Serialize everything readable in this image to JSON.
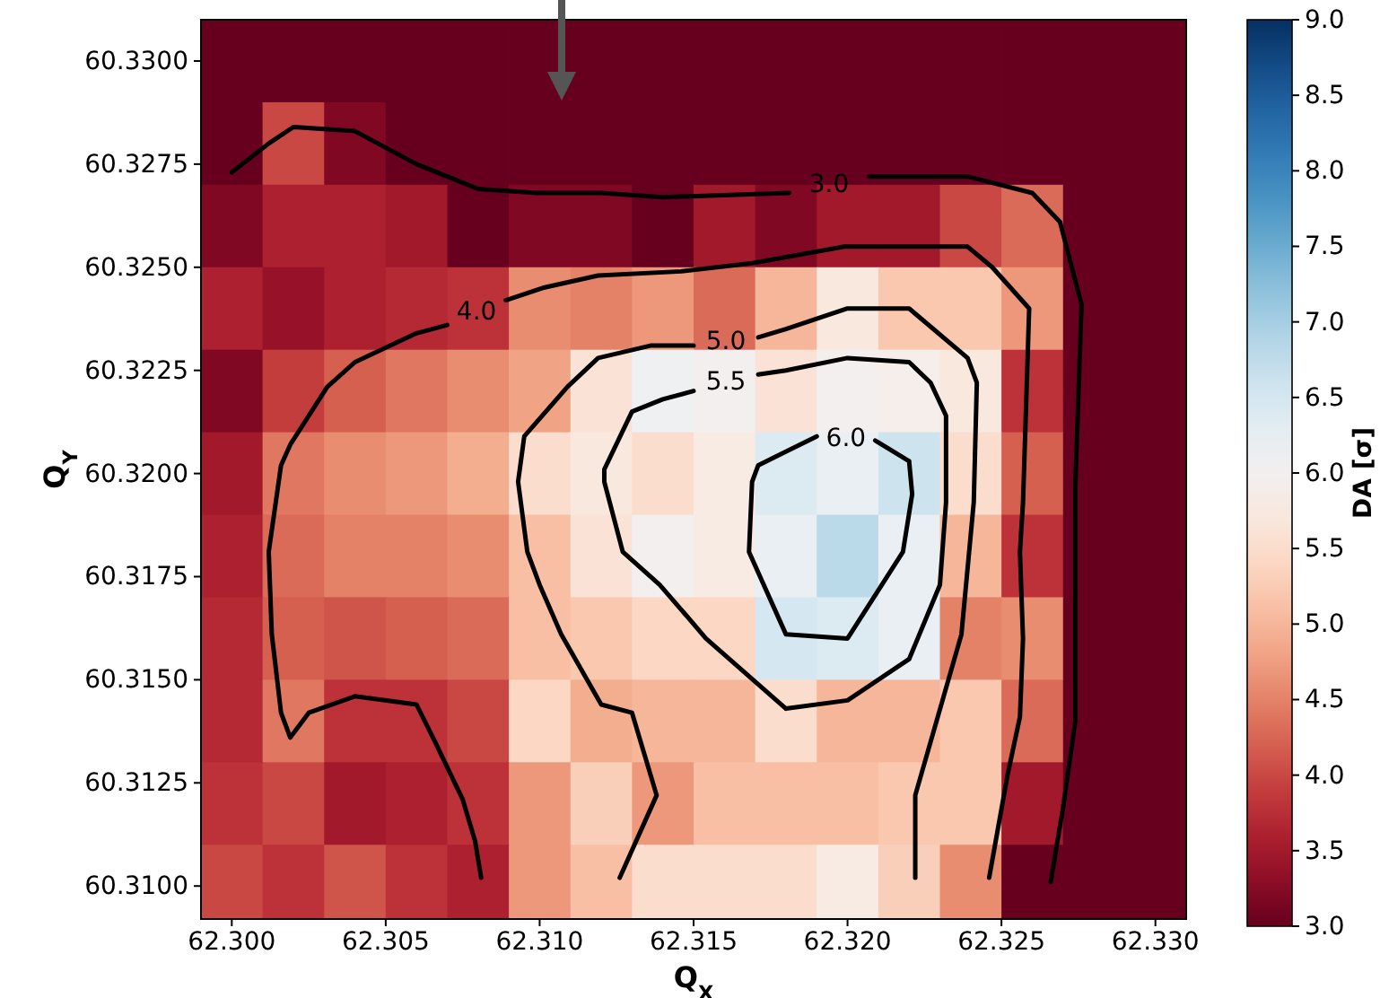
{
  "chart_data": {
    "type": "heatmap",
    "xlabel": "Q$_{X}$",
    "ylabel": "Q$_{Y}$",
    "clabel": "DA [σ]",
    "x": [
      62.3,
      62.302,
      62.304,
      62.306,
      62.308,
      62.31,
      62.312,
      62.314,
      62.316,
      62.318,
      62.32,
      62.322,
      62.324,
      62.326,
      62.328,
      62.33
    ],
    "y": [
      60.33,
      60.328,
      60.326,
      60.324,
      60.322,
      60.32,
      60.318,
      60.316,
      60.314,
      60.312,
      60.31
    ],
    "xlim": [
      62.299,
      62.331
    ],
    "xticks": [
      {
        "value": 62.3,
        "label": "62.300"
      },
      {
        "value": 62.305,
        "label": "62.305"
      },
      {
        "value": 62.31,
        "label": "62.310"
      },
      {
        "value": 62.315,
        "label": "62.315"
      },
      {
        "value": 62.32,
        "label": "62.320"
      },
      {
        "value": 62.325,
        "label": "62.325"
      },
      {
        "value": 62.33,
        "label": "62.330"
      }
    ],
    "ylim": [
      60.3092,
      60.331
    ],
    "yticks": [
      {
        "value": 60.31,
        "label": "60.3100"
      },
      {
        "value": 60.3125,
        "label": "60.3125"
      },
      {
        "value": 60.315,
        "label": "60.3150"
      },
      {
        "value": 60.3175,
        "label": "60.3175"
      },
      {
        "value": 60.32,
        "label": "60.3200"
      },
      {
        "value": 60.3225,
        "label": "60.3225"
      },
      {
        "value": 60.325,
        "label": "60.3250"
      },
      {
        "value": 60.3275,
        "label": "60.3275"
      },
      {
        "value": 60.33,
        "label": "60.3300"
      }
    ],
    "clim": [
      3.0,
      9.0
    ],
    "cticks": [
      {
        "value": 3.0,
        "label": "3.0"
      },
      {
        "value": 3.5,
        "label": "3.5"
      },
      {
        "value": 4.0,
        "label": "4.0"
      },
      {
        "value": 4.5,
        "label": "4.5"
      },
      {
        "value": 5.0,
        "label": "5.0"
      },
      {
        "value": 5.5,
        "label": "5.5"
      },
      {
        "value": 6.0,
        "label": "6.0"
      },
      {
        "value": 6.5,
        "label": "6.5"
      },
      {
        "value": 7.0,
        "label": "7.0"
      },
      {
        "value": 7.5,
        "label": "7.5"
      },
      {
        "value": 8.0,
        "label": "8.0"
      },
      {
        "value": 8.5,
        "label": "8.5"
      },
      {
        "value": 9.0,
        "label": "9.0"
      }
    ],
    "cells": [
      [
        3.0,
        3.0,
        3.0,
        3.0,
        3.0,
        3.0,
        3.0,
        3.0,
        3.0,
        3.0,
        3.0,
        3.0,
        3.0,
        3.0,
        3.0,
        3.0
      ],
      [
        3.0,
        4.0,
        3.2,
        3.0,
        3.0,
        3.0,
        3.0,
        3.0,
        3.0,
        3.0,
        3.0,
        3.0,
        3.0,
        3.0,
        3.0,
        3.0
      ],
      [
        3.2,
        3.6,
        3.6,
        3.5,
        3.0,
        3.2,
        3.2,
        3.0,
        3.5,
        3.2,
        3.5,
        3.5,
        4.0,
        4.3,
        3.0,
        3.0
      ],
      [
        3.6,
        3.4,
        3.6,
        3.7,
        3.8,
        4.6,
        4.5,
        4.7,
        4.3,
        5.0,
        5.7,
        5.2,
        5.2,
        4.7,
        3.0,
        3.0
      ],
      [
        3.2,
        3.9,
        4.2,
        4.4,
        4.6,
        4.8,
        5.6,
        6.1,
        6.0,
        5.6,
        6.0,
        5.9,
        5.7,
        3.8,
        3.0,
        3.0
      ],
      [
        3.5,
        4.4,
        4.6,
        4.7,
        4.9,
        5.5,
        5.7,
        5.5,
        5.8,
        6.4,
        6.2,
        6.6,
        5.5,
        4.2,
        3.0,
        3.0
      ],
      [
        3.6,
        4.3,
        4.5,
        4.5,
        4.6,
        5.1,
        5.6,
        6.0,
        5.8,
        6.2,
        6.8,
        6.2,
        5.0,
        3.8,
        3.0,
        3.0
      ],
      [
        3.7,
        4.2,
        4.1,
        4.2,
        4.3,
        5.1,
        5.2,
        5.4,
        5.4,
        6.5,
        6.4,
        6.2,
        4.5,
        4.6,
        3.0,
        3.0
      ],
      [
        3.7,
        4.4,
        3.8,
        3.8,
        4.0,
        5.4,
        4.9,
        5.0,
        5.0,
        5.5,
        5.0,
        5.0,
        5.2,
        4.3,
        3.0,
        3.0
      ],
      [
        3.8,
        4.0,
        3.5,
        3.6,
        3.8,
        4.7,
        5.3,
        4.7,
        5.1,
        5.1,
        5.1,
        5.2,
        5.2,
        3.5,
        3.0,
        3.0
      ],
      [
        4.0,
        3.8,
        4.1,
        3.8,
        3.6,
        4.7,
        5.1,
        5.5,
        5.5,
        5.5,
        5.8,
        5.3,
        4.6,
        3.0,
        3.0,
        3.0
      ]
    ],
    "series": [
      {
        "type": "line",
        "name": "3.0",
        "color": "#000000",
        "x": [
          62.3,
          62.3012,
          62.302,
          62.304,
          62.306,
          62.308,
          62.3099,
          62.312,
          62.314,
          62.3181,
          62.3194,
          62.3207,
          62.3239,
          62.326,
          62.3269,
          62.3276,
          62.3274,
          62.3274,
          62.327,
          62.3266
        ],
        "values": [
          60.3273,
          60.328,
          60.3284,
          60.3283,
          60.3275,
          60.3269,
          60.3268,
          60.3268,
          60.3267,
          60.3268,
          null,
          60.3272,
          60.3272,
          60.3268,
          60.3261,
          60.3241,
          60.3197,
          60.314,
          60.3119,
          60.3101
        ]
      },
      {
        "type": "line",
        "name": "4.0",
        "color": "#000000",
        "x": [
          62.3081,
          62.3079,
          62.3075,
          62.3066,
          62.306,
          62.304,
          62.3025,
          62.3019,
          62.3016,
          62.3013,
          62.3012,
          62.3016,
          62.3019,
          62.3031,
          62.304,
          62.306,
          62.307,
          62.308,
          62.3089,
          62.3101,
          62.3119,
          62.3146,
          62.3169,
          62.3199,
          62.322,
          62.3239,
          62.3247,
          62.3259,
          62.3257,
          62.3256,
          62.3257,
          62.3256,
          62.3252,
          62.3246
        ],
        "values": [
          60.3102,
          60.3111,
          60.3121,
          60.3135,
          60.3144,
          60.3146,
          60.3142,
          60.3136,
          60.3142,
          60.3161,
          60.3181,
          60.3202,
          60.3207,
          60.3221,
          60.3227,
          60.3234,
          60.3236,
          null,
          60.3242,
          60.3245,
          60.3248,
          60.3249,
          60.3251,
          60.3255,
          60.3255,
          60.3255,
          60.325,
          60.324,
          60.3193,
          60.3181,
          60.316,
          60.3141,
          60.3127,
          60.3102
        ]
      },
      {
        "type": "line",
        "name": "5.0",
        "color": "#000000",
        "x": [
          62.3126,
          62.3138,
          62.313,
          62.312,
          62.3107,
          62.31,
          62.3096,
          62.3093,
          62.3095,
          62.3109,
          62.3119,
          62.3136,
          62.315,
          62.3159,
          62.3171,
          62.318,
          62.32,
          62.322,
          62.3239,
          62.3242,
          62.3241,
          62.3237,
          62.3222,
          62.3222
        ],
        "values": [
          60.3102,
          60.3122,
          60.3142,
          60.3144,
          60.3161,
          60.3173,
          60.3181,
          60.3198,
          60.3209,
          60.3221,
          60.3228,
          60.3231,
          60.3231,
          null,
          60.3233,
          60.3235,
          60.324,
          60.324,
          60.3228,
          60.3222,
          60.3193,
          60.3161,
          60.3122,
          60.3102
        ]
      },
      {
        "type": "line",
        "name": "5.5",
        "color": "#000000",
        "x": [
          62.318,
          62.3154,
          62.3146,
          62.3139,
          62.3127,
          62.3121,
          62.3121,
          62.313,
          62.314,
          62.315,
          62.3159,
          62.3171,
          62.318,
          62.32,
          62.322,
          62.3227,
          62.3232,
          62.3232,
          62.323,
          62.322,
          62.32,
          62.318
        ],
        "values": [
          60.3143,
          60.316,
          60.3167,
          60.3173,
          60.3181,
          60.3198,
          60.3201,
          60.3215,
          60.3218,
          60.322,
          null,
          60.3224,
          60.3225,
          60.3228,
          60.3227,
          60.3222,
          60.3214,
          60.3193,
          60.3173,
          60.3155,
          60.3145,
          60.3143
        ]
      },
      {
        "type": "line",
        "name": "6.0",
        "color": "#000000",
        "x": [
          62.322,
          62.3221,
          62.3218,
          62.32,
          62.318,
          62.3168,
          62.3169,
          62.3171,
          62.319,
          62.32,
          62.3209,
          62.322
        ],
        "values": [
          60.3203,
          60.3195,
          60.3181,
          60.316,
          60.3161,
          60.3181,
          60.3198,
          60.3202,
          60.3209,
          null,
          60.3208,
          60.3203
        ]
      }
    ]
  }
}
